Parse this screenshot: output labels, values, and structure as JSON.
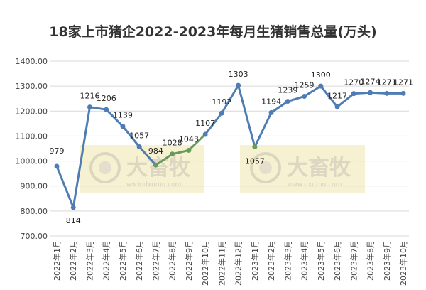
{
  "chart_data": {
    "type": "line",
    "title": "18家上市猪企2022-2023年每月生猪销售总量(万头)",
    "categories": [
      "2022年1月",
      "2022年2月",
      "2022年3月",
      "2022年4月",
      "2022年5月",
      "2022年6月",
      "2022年7月",
      "2022年8月",
      "2022年9月",
      "2022年10月",
      "2022年11月",
      "2022年12月",
      "2023年1月",
      "2023年2月",
      "2023年3月",
      "2023年4月",
      "2023年5月",
      "2023年6月",
      "2023年7月",
      "2023年8月",
      "2023年9月",
      "2023年10月"
    ],
    "values": [
      979,
      814,
      1216,
      1206,
      1139,
      1057,
      984,
      1028,
      1043,
      1107,
      1192,
      1303,
      1057,
      1194,
      1239,
      1259,
      1300,
      1217,
      1270,
      1274,
      1271,
      1271
    ],
    "ylim": [
      700,
      1400
    ],
    "yticks": [
      "700.00",
      "800.00",
      "900.00",
      "1000.00",
      "1100.00",
      "1200.00",
      "1300.00",
      "1400.00"
    ],
    "grid": true,
    "colors": {
      "line": "#4f7db3",
      "point": "#4f7db3",
      "highlight_line": "#6a9a5b",
      "grid": "#d9d9d9",
      "watermark_bg": "#f5efc8"
    }
  },
  "watermark": {
    "brand": "大畜牧",
    "url": "www.dxumu.com"
  }
}
